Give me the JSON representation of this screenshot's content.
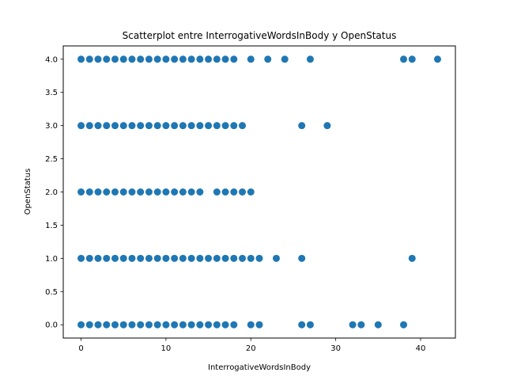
{
  "chart_data": {
    "type": "scatter",
    "title": "Scatterplot entre InterrogativeWordsInBody y OpenStatus",
    "xlabel": "InterrogativeWordsInBody",
    "ylabel": "OpenStatus",
    "xlim": [
      -2.1,
      44.1
    ],
    "ylim": [
      -0.2,
      4.2
    ],
    "xticks": [
      0,
      10,
      20,
      30,
      40
    ],
    "xtick_labels": [
      "0",
      "10",
      "20",
      "30",
      "40"
    ],
    "yticks": [
      0.0,
      0.5,
      1.0,
      1.5,
      2.0,
      2.5,
      3.0,
      3.5,
      4.0
    ],
    "ytick_labels": [
      "0.0",
      "0.5",
      "1.0",
      "1.5",
      "2.0",
      "2.5",
      "3.0",
      "3.5",
      "4.0"
    ],
    "grid": false,
    "marker_color": "#1f77b4",
    "series": [
      {
        "points": [
          [
            0,
            4
          ],
          [
            1,
            4
          ],
          [
            2,
            4
          ],
          [
            3,
            4
          ],
          [
            4,
            4
          ],
          [
            5,
            4
          ],
          [
            6,
            4
          ],
          [
            7,
            4
          ],
          [
            8,
            4
          ],
          [
            9,
            4
          ],
          [
            10,
            4
          ],
          [
            11,
            4
          ],
          [
            12,
            4
          ],
          [
            13,
            4
          ],
          [
            14,
            4
          ],
          [
            15,
            4
          ],
          [
            16,
            4
          ],
          [
            17,
            4
          ],
          [
            18,
            4
          ],
          [
            20,
            4
          ],
          [
            22,
            4
          ],
          [
            24,
            4
          ],
          [
            27,
            4
          ],
          [
            38,
            4
          ],
          [
            39,
            4
          ],
          [
            42,
            4
          ],
          [
            0,
            3
          ],
          [
            1,
            3
          ],
          [
            2,
            3
          ],
          [
            3,
            3
          ],
          [
            4,
            3
          ],
          [
            5,
            3
          ],
          [
            6,
            3
          ],
          [
            7,
            3
          ],
          [
            8,
            3
          ],
          [
            9,
            3
          ],
          [
            10,
            3
          ],
          [
            11,
            3
          ],
          [
            12,
            3
          ],
          [
            13,
            3
          ],
          [
            14,
            3
          ],
          [
            15,
            3
          ],
          [
            16,
            3
          ],
          [
            17,
            3
          ],
          [
            18,
            3
          ],
          [
            19,
            3
          ],
          [
            26,
            3
          ],
          [
            29,
            3
          ],
          [
            0,
            2
          ],
          [
            1,
            2
          ],
          [
            2,
            2
          ],
          [
            3,
            2
          ],
          [
            4,
            2
          ],
          [
            5,
            2
          ],
          [
            6,
            2
          ],
          [
            7,
            2
          ],
          [
            8,
            2
          ],
          [
            9,
            2
          ],
          [
            10,
            2
          ],
          [
            11,
            2
          ],
          [
            12,
            2
          ],
          [
            13,
            2
          ],
          [
            14,
            2
          ],
          [
            16,
            2
          ],
          [
            17,
            2
          ],
          [
            18,
            2
          ],
          [
            19,
            2
          ],
          [
            20,
            2
          ],
          [
            0,
            1
          ],
          [
            1,
            1
          ],
          [
            2,
            1
          ],
          [
            3,
            1
          ],
          [
            4,
            1
          ],
          [
            5,
            1
          ],
          [
            6,
            1
          ],
          [
            7,
            1
          ],
          [
            8,
            1
          ],
          [
            9,
            1
          ],
          [
            10,
            1
          ],
          [
            11,
            1
          ],
          [
            12,
            1
          ],
          [
            13,
            1
          ],
          [
            14,
            1
          ],
          [
            15,
            1
          ],
          [
            16,
            1
          ],
          [
            17,
            1
          ],
          [
            18,
            1
          ],
          [
            19,
            1
          ],
          [
            20,
            1
          ],
          [
            21,
            1
          ],
          [
            23,
            1
          ],
          [
            26,
            1
          ],
          [
            39,
            1
          ],
          [
            0,
            0
          ],
          [
            1,
            0
          ],
          [
            2,
            0
          ],
          [
            3,
            0
          ],
          [
            4,
            0
          ],
          [
            5,
            0
          ],
          [
            6,
            0
          ],
          [
            7,
            0
          ],
          [
            8,
            0
          ],
          [
            9,
            0
          ],
          [
            10,
            0
          ],
          [
            11,
            0
          ],
          [
            12,
            0
          ],
          [
            13,
            0
          ],
          [
            14,
            0
          ],
          [
            15,
            0
          ],
          [
            16,
            0
          ],
          [
            17,
            0
          ],
          [
            18,
            0
          ],
          [
            20,
            0
          ],
          [
            21,
            0
          ],
          [
            26,
            0
          ],
          [
            27,
            0
          ],
          [
            32,
            0
          ],
          [
            33,
            0
          ],
          [
            35,
            0
          ],
          [
            38,
            0
          ]
        ]
      }
    ]
  }
}
